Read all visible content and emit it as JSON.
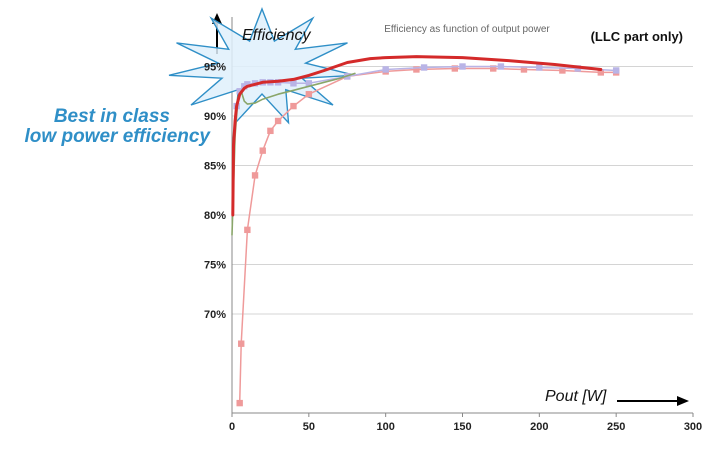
{
  "chart_data": {
    "type": "line",
    "title": "Efficiency as function of output power",
    "note": "(LLC part only)",
    "xlabel": "Pout [W]",
    "ylabel": "Efficiency",
    "callout": [
      "Best in class",
      "low power efficiency"
    ],
    "xlim": [
      0,
      300
    ],
    "ylim": [
      60,
      100
    ],
    "x_ticks": [
      "0",
      "50",
      "100",
      "150",
      "200",
      "250",
      "300"
    ],
    "y_ticks": [
      "70%",
      "75%",
      "80%",
      "85%",
      "90%",
      "95%"
    ],
    "grid": true,
    "colors": {
      "red": "#d42a2a",
      "pink": "#ef9a9a",
      "blue": "#b9b4e6",
      "green": "#8aa66a",
      "callout_fill": "#dff0fb",
      "callout_stroke": "#2f8fc7"
    },
    "series": [
      {
        "key": "red",
        "x": [
          0.5,
          1,
          2,
          3,
          5,
          8,
          10,
          15,
          20,
          30,
          40,
          50,
          60,
          75,
          90,
          100,
          120,
          150,
          180,
          210,
          240
        ],
        "values": [
          80,
          87,
          89.5,
          91,
          92.2,
          92.8,
          93,
          93.2,
          93.4,
          93.5,
          93.7,
          94.1,
          94.6,
          95.4,
          95.8,
          95.9,
          96.0,
          95.9,
          95.6,
          95.2,
          94.7
        ]
      },
      {
        "key": "pink",
        "markers": true,
        "x": [
          5,
          6,
          10,
          15,
          20,
          25,
          30,
          40,
          50,
          75,
          100,
          120,
          145,
          170,
          190,
          215,
          240,
          250
        ],
        "values": [
          61,
          67,
          78.5,
          84,
          86.5,
          88.5,
          89.5,
          91,
          92.2,
          94,
          94.5,
          94.7,
          94.8,
          94.8,
          94.7,
          94.6,
          94.4,
          94.4
        ]
      },
      {
        "key": "blue",
        "markers": true,
        "x": [
          3,
          5,
          8,
          10,
          15,
          20,
          25,
          30,
          40,
          50,
          75,
          100,
          125,
          150,
          175,
          200,
          225,
          250
        ],
        "values": [
          91,
          92.5,
          93,
          93.2,
          93.3,
          93.4,
          93.4,
          93.4,
          93.3,
          93.3,
          94,
          94.7,
          94.9,
          95.0,
          95.0,
          94.9,
          94.8,
          94.6
        ]
      },
      {
        "key": "green",
        "x": [
          0,
          2,
          4,
          6,
          8,
          10,
          15,
          20,
          30,
          40,
          50,
          60,
          70,
          80
        ],
        "values": [
          78,
          88,
          92,
          92.5,
          91.5,
          91.2,
          91.3,
          91.7,
          92.2,
          92.6,
          93,
          93.4,
          93.8,
          94.3
        ]
      }
    ]
  }
}
